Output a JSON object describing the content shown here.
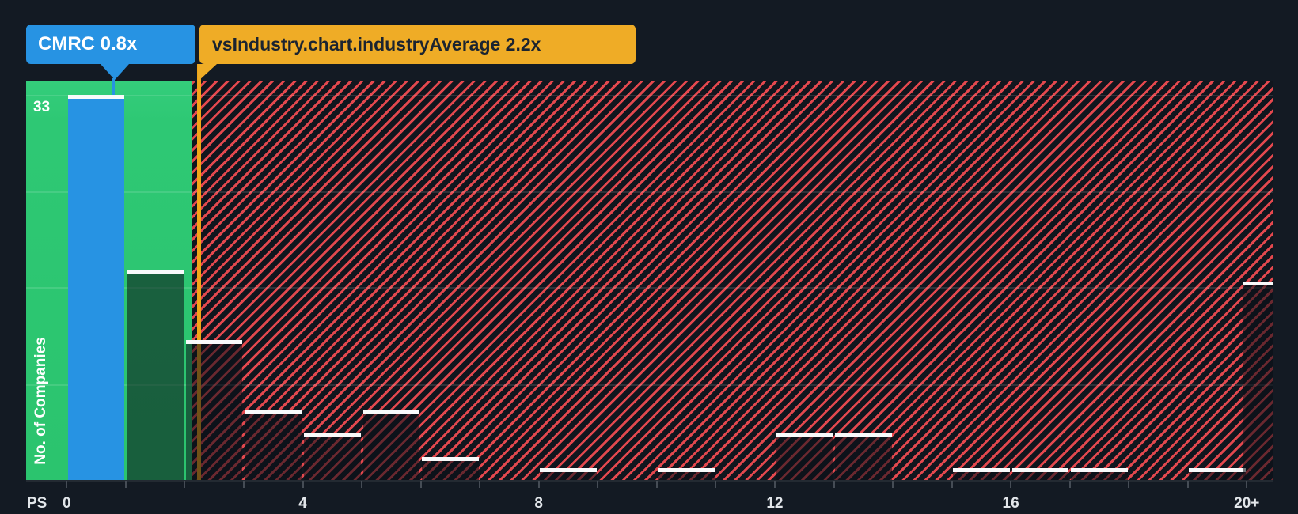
{
  "tooltips": {
    "company": {
      "label": "CMRC 0.8x"
    },
    "industry": {
      "label": "vsIndustry.chart.industryAverage 2.2x"
    }
  },
  "axis": {
    "x_title": "PS",
    "x_tick_labels": [
      "0",
      "4",
      "8",
      "12",
      "16",
      "20+"
    ],
    "x_labeled_units": [
      0,
      4,
      8,
      12,
      16,
      20
    ],
    "y_max_label": "33",
    "y_title": "No. of Companies"
  },
  "chart_data": {
    "type": "bar",
    "title": "",
    "xlabel": "PS",
    "ylabel": "No. of Companies",
    "categories": [
      "0-1",
      "1-2",
      "2-3",
      "3-4",
      "4-5",
      "5-6",
      "6-7",
      "7-8",
      "8-9",
      "9-10",
      "10-11",
      "11-12",
      "12-13",
      "13-14",
      "14-15",
      "15-16",
      "16-17",
      "17-18",
      "18-19",
      "19-20",
      "20+"
    ],
    "values": [
      33,
      18,
      12,
      6,
      4,
      6,
      2,
      0,
      1,
      0,
      1,
      0,
      4,
      4,
      0,
      1,
      1,
      1,
      0,
      1,
      17
    ],
    "ylim": [
      0,
      33
    ],
    "xlim": [
      0,
      20
    ],
    "grid": "faint horizontal lines",
    "legend_position": "none",
    "highlight": {
      "company": "CMRC",
      "ps_value": 0.8,
      "bucket_index": 0
    },
    "industry_average": {
      "label_key": "vsIndustry.chart.industryAverage",
      "ps_value": 2.2
    },
    "zones": {
      "below_average": "solid green",
      "above_average": "red diagonal hatch"
    }
  },
  "colors": {
    "background": "#131a23",
    "green_zone": "#2ec874",
    "hatch_background": "#11161e",
    "hatch_stripe": "#e4484e",
    "bar_fill_overlay": "rgba(10,16,23,0.56)",
    "bar_cap": "#f8fafb",
    "highlight_blue": "#2793e3",
    "industry_yellow": "#efac26",
    "industry_line": "#f2a517",
    "axis_text": "#e2e6ea",
    "tooltip_dark_text": "#1b2430",
    "tick": "#454c55"
  }
}
